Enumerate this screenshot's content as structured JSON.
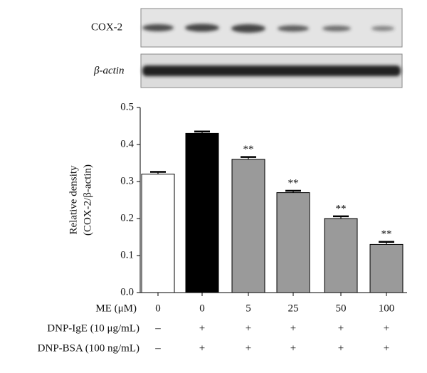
{
  "chart_data": {
    "type": "bar",
    "blot_labels": [
      "COX-2",
      "β-actin"
    ],
    "ylabel": [
      "Relative density",
      "(COX-2/β-actin)"
    ],
    "category_label": "ME (μM)",
    "categories": [
      "0",
      "0",
      "5",
      "25",
      "50",
      "100"
    ],
    "values": [
      0.32,
      0.43,
      0.36,
      0.27,
      0.2,
      0.13
    ],
    "errors": [
      0.006,
      0.005,
      0.006,
      0.005,
      0.006,
      0.007
    ],
    "annotations": [
      null,
      null,
      "**",
      "**",
      "**",
      "**"
    ],
    "colors": [
      "#ffffff",
      "#000000",
      "#9a9a9a",
      "#9a9a9a",
      "#9a9a9a",
      "#9a9a9a"
    ],
    "conditions": [
      {
        "label": "DNP-IgE (10 μg/mL)",
        "values": [
          "–",
          "+",
          "+",
          "+",
          "+",
          "+"
        ]
      },
      {
        "label": "DNP-BSA (100 ng/mL)",
        "values": [
          "–",
          "+",
          "+",
          "+",
          "+",
          "+"
        ]
      }
    ],
    "ylim": [
      0,
      0.5
    ],
    "yticks": [
      {
        "value": 0,
        "label": "0.0"
      },
      0.1,
      0.2,
      0.3,
      0.4,
      0.5
    ]
  }
}
